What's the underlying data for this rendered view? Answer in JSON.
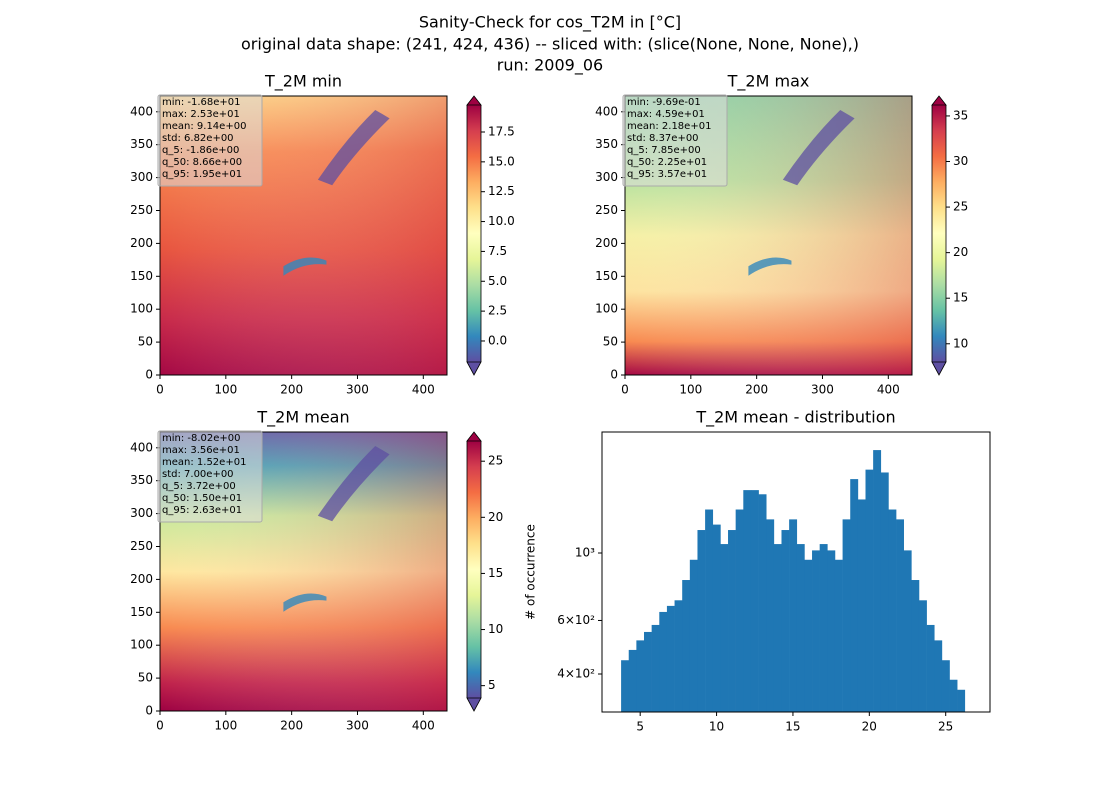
{
  "suptitle": [
    "Sanity-Check for cos_T2M in [°C]",
    "original data shape: (241, 424, 436) -- sliced with: (slice(None, None, None),)",
    "run: 2009_06"
  ],
  "chart_data": [
    {
      "type": "heatmap",
      "title": "T_2M min",
      "xlim": [
        0,
        436
      ],
      "ylim": [
        0,
        424
      ],
      "xticks": [
        0,
        100,
        200,
        300,
        400
      ],
      "yticks": [
        0,
        50,
        100,
        150,
        200,
        250,
        300,
        350,
        400
      ],
      "stats": [
        "min: -1.68e+01",
        "max: 2.53e+01",
        "mean: 9.14e+00",
        "std: 6.82e+00",
        "q_5: -1.86e+00",
        "q_50: 8.66e+00",
        "q_95: 1.95e+01"
      ],
      "colormap": "Spectral_r",
      "clim": [
        -1.76,
        19.76
      ],
      "cticks": [
        {
          "value": 0,
          "label": "0.0"
        },
        2.5,
        {
          "value": 5,
          "label": "5.0"
        },
        7.5,
        {
          "value": 10,
          "label": "10.0"
        },
        12.5,
        {
          "value": 15,
          "label": "15.0"
        },
        17.5
      ]
    },
    {
      "type": "heatmap",
      "title": "T_2M max",
      "xlim": [
        0,
        436
      ],
      "ylim": [
        0,
        424
      ],
      "xticks": [
        0,
        100,
        200,
        300,
        400
      ],
      "yticks": [
        0,
        50,
        100,
        150,
        200,
        250,
        300,
        350,
        400
      ],
      "stats": [
        "min: -9.69e-01",
        "max: 4.59e+01",
        "mean: 2.18e+01",
        "std: 8.37e+00",
        "q_5: 7.85e+00",
        "q_50: 2.25e+01",
        "q_95: 3.57e+01"
      ],
      "colormap": "Spectral_r",
      "clim": [
        8.0,
        36.2
      ],
      "cticks": [
        10,
        15,
        20,
        25,
        30,
        35
      ]
    },
    {
      "type": "heatmap",
      "title": "T_2M mean",
      "xlim": [
        0,
        436
      ],
      "ylim": [
        0,
        424
      ],
      "xticks": [
        0,
        100,
        200,
        300,
        400
      ],
      "yticks": [
        0,
        50,
        100,
        150,
        200,
        250,
        300,
        350,
        400
      ],
      "stats": [
        "min: -8.02e+00",
        "max: 3.56e+01",
        "mean: 1.52e+01",
        "std: 7.00e+00",
        "q_5: 3.72e+00",
        "q_50: 1.50e+01",
        "q_95: 2.63e+01"
      ],
      "colormap": "Spectral_r",
      "clim": [
        3.9,
        26.8
      ],
      "cticks": [
        5,
        10,
        15,
        20,
        25
      ]
    },
    {
      "type": "histogram",
      "title": "T_2M mean - distribution",
      "ylabel": "# of occurrence",
      "color": "#1f77b4",
      "log": true,
      "xlim": [
        2.5,
        27.9
      ],
      "ylim": [
        300,
        2500
      ],
      "xticks": [
        5,
        10,
        15,
        20,
        25
      ],
      "yticks": [
        {
          "value": 400,
          "label": "4×10²"
        },
        {
          "value": 600,
          "label": "6×10²"
        },
        {
          "value": 1000,
          "label": "10³"
        }
      ],
      "bins": [
        3.75,
        4.25,
        4.75,
        5.25,
        5.75,
        6.25,
        6.75,
        7.25,
        7.75,
        8.25,
        8.75,
        9.25,
        9.75,
        10.25,
        10.75,
        11.25,
        11.75,
        12.25,
        12.75,
        13.25,
        13.75,
        14.25,
        14.75,
        15.25,
        15.75,
        16.25,
        16.75,
        17.25,
        17.75,
        18.25,
        18.75,
        19.25,
        19.75,
        20.25,
        20.75,
        21.25,
        21.75,
        22.25,
        22.75,
        23.25,
        23.75,
        24.25,
        24.75,
        25.25,
        25.75,
        26.25
      ],
      "values": [
        444,
        480,
        516,
        550,
        580,
        640,
        670,
        699,
        815,
        950,
        1190,
        1390,
        1240,
        1070,
        1190,
        1390,
        1610,
        1610,
        1560,
        1290,
        1070,
        1190,
        1290,
        1070,
        950,
        1020,
        1070,
        1020,
        950,
        1290,
        1750,
        1500,
        1880,
        2180,
        1840,
        1390,
        1290,
        1020,
        815,
        699,
        580,
        516,
        444,
        383,
        355
      ]
    }
  ]
}
